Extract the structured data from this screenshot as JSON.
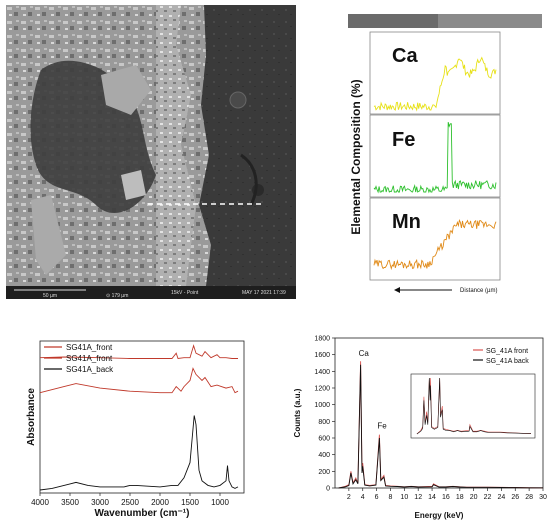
{
  "sem": {
    "scale_bar": "50 µm",
    "field_readout": "⊙ 179 µm",
    "acquisition": "15kV - Point",
    "date": "MAY 17 2021 17:39"
  },
  "profiles": {
    "ylabel": "Elemental Composition (%)",
    "xlabel": "Distance (µm)",
    "panels": [
      {
        "element": "Ca",
        "color": "#e7e117"
      },
      {
        "element": "Fe",
        "color": "#2ec02e"
      },
      {
        "element": "Mn",
        "color": "#e08a18"
      }
    ]
  },
  "chart_data": [
    {
      "type": "line",
      "xlabel": "Wavenumber (cm⁻¹)",
      "ylabel": "Absorbance",
      "xlim": [
        4000,
        600
      ],
      "x_ticks": [
        4000,
        3500,
        3000,
        2500,
        2000,
        1500,
        1000
      ],
      "legend_position": "top-left",
      "series": [
        {
          "name": "SG41A_front",
          "color": "#c0392b",
          "points": [
            [
              4000,
              0.89
            ],
            [
              3600,
              0.895
            ],
            [
              3000,
              0.89
            ],
            [
              2500,
              0.885
            ],
            [
              2000,
              0.885
            ],
            [
              1800,
              0.885
            ],
            [
              1730,
              0.92
            ],
            [
              1700,
              0.885
            ],
            [
              1600,
              0.89
            ],
            [
              1500,
              0.89
            ],
            [
              1440,
              0.97
            ],
            [
              1400,
              0.92
            ],
            [
              1300,
              0.9
            ],
            [
              1250,
              0.93
            ],
            [
              1150,
              0.89
            ],
            [
              1050,
              0.91
            ],
            [
              1000,
              0.89
            ],
            [
              900,
              0.89
            ],
            [
              800,
              0.885
            ],
            [
              700,
              0.885
            ]
          ]
        },
        {
          "name": "SG41A_front",
          "color": "#c0392b",
          "points": [
            [
              4000,
              0.66
            ],
            [
              3600,
              0.7
            ],
            [
              3400,
              0.72
            ],
            [
              3000,
              0.69
            ],
            [
              2500,
              0.67
            ],
            [
              2000,
              0.66
            ],
            [
              1800,
              0.66
            ],
            [
              1730,
              0.7
            ],
            [
              1650,
              0.67
            ],
            [
              1600,
              0.7
            ],
            [
              1500,
              0.74
            ],
            [
              1450,
              0.82
            ],
            [
              1400,
              0.78
            ],
            [
              1300,
              0.74
            ],
            [
              1250,
              0.76
            ],
            [
              1150,
              0.7
            ],
            [
              1050,
              0.71
            ],
            [
              900,
              0.69
            ],
            [
              800,
              0.7
            ],
            [
              750,
              0.66
            ],
            [
              700,
              0.67
            ]
          ]
        },
        {
          "name": "SG41A_back",
          "color": "#111111",
          "points": [
            [
              4000,
              0.02
            ],
            [
              3800,
              0.03
            ],
            [
              3500,
              0.06
            ],
            [
              3400,
              0.07
            ],
            [
              3200,
              0.05
            ],
            [
              3000,
              0.04
            ],
            [
              2600,
              0.04
            ],
            [
              2500,
              0.05
            ],
            [
              2400,
              0.05
            ],
            [
              2000,
              0.04
            ],
            [
              1800,
              0.05
            ],
            [
              1700,
              0.05
            ],
            [
              1600,
              0.1
            ],
            [
              1500,
              0.2
            ],
            [
              1430,
              0.51
            ],
            [
              1400,
              0.45
            ],
            [
              1350,
              0.15
            ],
            [
              1300,
              0.08
            ],
            [
              1200,
              0.05
            ],
            [
              1100,
              0.04
            ],
            [
              1000,
              0.05
            ],
            [
              900,
              0.08
            ],
            [
              875,
              0.18
            ],
            [
              850,
              0.08
            ],
            [
              800,
              0.04
            ],
            [
              750,
              0.03
            ],
            [
              700,
              0.04
            ]
          ]
        }
      ]
    },
    {
      "type": "line",
      "xlabel": "Energy (keV)",
      "ylabel": "Counts (a.u.)",
      "xlim": [
        0,
        30
      ],
      "ylim": [
        0,
        1800
      ],
      "x_ticks": [
        2,
        4,
        6,
        8,
        10,
        12,
        14,
        16,
        18,
        20,
        22,
        24,
        26,
        28,
        30
      ],
      "y_ticks": [
        0,
        200,
        400,
        600,
        800,
        1000,
        1200,
        1400,
        1600,
        1800
      ],
      "legend_position": "top-right",
      "annotations": [
        {
          "text": "Ca",
          "x": 3.7,
          "y": 1560
        },
        {
          "text": "Fe",
          "x": 6.4,
          "y": 690
        }
      ],
      "series": [
        {
          "name": "SG_41A front",
          "color": "#d9534f",
          "points": [
            [
              0.5,
              0
            ],
            [
              1.5,
              20
            ],
            [
              2,
              40
            ],
            [
              2.3,
              200
            ],
            [
              2.6,
              60
            ],
            [
              3.0,
              120
            ],
            [
              3.3,
              60
            ],
            [
              3.69,
              1520
            ],
            [
              3.9,
              200
            ],
            [
              4.0,
              300
            ],
            [
              4.3,
              40
            ],
            [
              5.0,
              30
            ],
            [
              5.9,
              40
            ],
            [
              6.4,
              640
            ],
            [
              6.6,
              100
            ],
            [
              7.06,
              150
            ],
            [
              7.3,
              30
            ],
            [
              8.0,
              25
            ],
            [
              9.0,
              20
            ],
            [
              10,
              15
            ],
            [
              11,
              20
            ],
            [
              12,
              15
            ],
            [
              14,
              20
            ],
            [
              14.2,
              50
            ],
            [
              15,
              15
            ],
            [
              16,
              15
            ],
            [
              17,
              20
            ],
            [
              18,
              15
            ],
            [
              19,
              10
            ],
            [
              20,
              10
            ],
            [
              22,
              10
            ],
            [
              24,
              8
            ],
            [
              26,
              6
            ],
            [
              28,
              4
            ],
            [
              30,
              3
            ]
          ]
        },
        {
          "name": "SG_41A back",
          "color": "#111111",
          "points": [
            [
              0.5,
              0
            ],
            [
              1.5,
              15
            ],
            [
              2,
              30
            ],
            [
              2.3,
              180
            ],
            [
              2.6,
              50
            ],
            [
              3.0,
              100
            ],
            [
              3.3,
              50
            ],
            [
              3.69,
              1480
            ],
            [
              3.9,
              180
            ],
            [
              4.0,
              260
            ],
            [
              4.3,
              35
            ],
            [
              5.0,
              25
            ],
            [
              5.9,
              35
            ],
            [
              6.4,
              600
            ],
            [
              6.6,
              90
            ],
            [
              7.06,
              130
            ],
            [
              7.3,
              25
            ],
            [
              8.0,
              20
            ],
            [
              9.0,
              18
            ],
            [
              10,
              12
            ],
            [
              11,
              18
            ],
            [
              12,
              12
            ],
            [
              14,
              15
            ],
            [
              14.2,
              40
            ],
            [
              15,
              12
            ],
            [
              16,
              12
            ],
            [
              17,
              18
            ],
            [
              18,
              12
            ],
            [
              19,
              8
            ],
            [
              20,
              8
            ],
            [
              22,
              8
            ],
            [
              24,
              6
            ],
            [
              26,
              5
            ],
            [
              28,
              3
            ],
            [
              30,
              2
            ]
          ]
        }
      ]
    }
  ]
}
